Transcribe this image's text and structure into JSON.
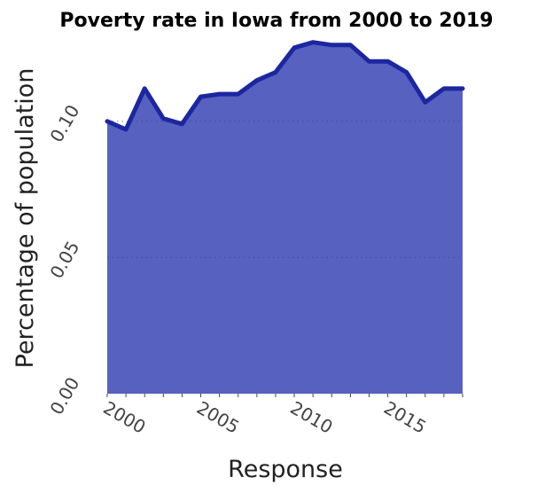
{
  "chart_data": {
    "type": "area",
    "title": "Poverty rate in Iowa from 2000 to 2019",
    "xlabel": "Response",
    "ylabel": "Percentage of population",
    "x": [
      2000,
      2001,
      2002,
      2003,
      2004,
      2005,
      2006,
      2007,
      2008,
      2009,
      2010,
      2011,
      2012,
      2013,
      2014,
      2015,
      2016,
      2017,
      2018,
      2019
    ],
    "values": [
      0.1,
      0.097,
      0.112,
      0.101,
      0.099,
      0.109,
      0.11,
      0.11,
      0.115,
      0.118,
      0.127,
      0.129,
      0.128,
      0.128,
      0.122,
      0.122,
      0.118,
      0.107,
      0.112,
      0.112
    ],
    "xlim": [
      2000,
      2019
    ],
    "ylim": [
      0,
      0.13
    ],
    "x_ticks": [
      2000,
      2005,
      2010,
      2015
    ],
    "x_tick_labels": [
      "2000",
      "2005",
      "2010",
      "2015"
    ],
    "y_ticks": [
      0.0,
      0.05,
      0.1
    ],
    "y_tick_labels": [
      "0.00",
      "0.05",
      "0.10"
    ],
    "grid": "horizontal-dotted",
    "legend": "none",
    "colors": {
      "fill": "#5761bf",
      "line": "#1c26a0"
    }
  }
}
